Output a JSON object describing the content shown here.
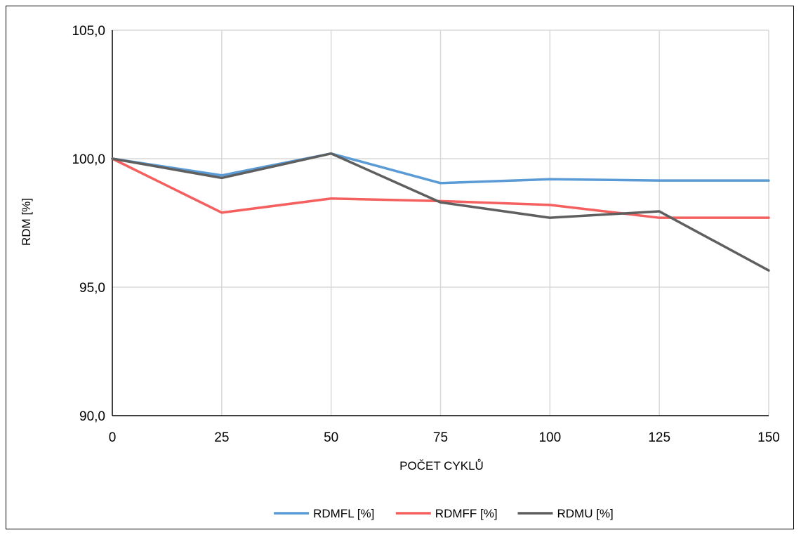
{
  "chart_data": {
    "type": "line",
    "title": "",
    "xlabel": "POČET CYKLŮ",
    "ylabel": "RDM [%]",
    "x": [
      0,
      25,
      50,
      75,
      100,
      125,
      150
    ],
    "x_tick_labels": [
      "0",
      "25",
      "50",
      "75",
      "100",
      "125",
      "150"
    ],
    "xlim": [
      0,
      150
    ],
    "ylim": [
      90,
      105
    ],
    "y_ticks": [
      90,
      95,
      100,
      105
    ],
    "y_tick_labels": [
      "90,0",
      "95,0",
      "100,0",
      "105,0"
    ],
    "grid": "vertical and horizontal major",
    "legend_position": "bottom",
    "series": [
      {
        "name": "RDMFL [%]",
        "color": "#5b9bd5",
        "values": [
          100.0,
          99.35,
          100.2,
          99.05,
          99.2,
          99.15,
          99.15
        ]
      },
      {
        "name": "RDMFF [%]",
        "color": "#f4605f",
        "values": [
          100.0,
          97.9,
          98.45,
          98.35,
          98.2,
          97.7,
          97.7
        ]
      },
      {
        "name": "RDMU [%]",
        "color": "#5f5f5f",
        "values": [
          100.0,
          99.25,
          100.2,
          98.3,
          97.7,
          97.95,
          95.65
        ]
      }
    ]
  }
}
